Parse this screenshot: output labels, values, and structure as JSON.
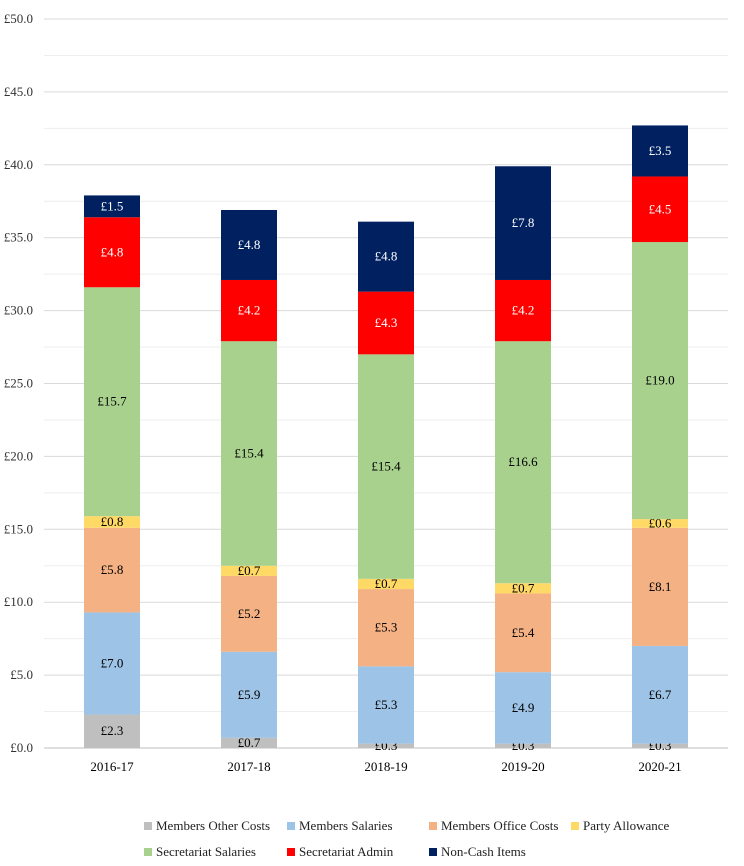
{
  "chart_data": {
    "type": "bar",
    "stacked": true,
    "title": "",
    "xlabel": "",
    "ylabel": "",
    "ylim": [
      0,
      50
    ],
    "ytick_step": 5,
    "ytick_labels": [
      "£0.0",
      "£5.0",
      "£10.0",
      "£15.0",
      "£20.0",
      "£25.0",
      "£30.0",
      "£35.0",
      "£40.0",
      "£45.0",
      "£50.0"
    ],
    "grid": true,
    "legend_position": "bottom",
    "categories": [
      "2016-17",
      "2017-18",
      "2018-19",
      "2019-20",
      "2020-21"
    ],
    "series": [
      {
        "name": "Members Other Costs",
        "color": "#bfbfbf",
        "label_color": "#000000",
        "values": [
          2.3,
          0.7,
          0.3,
          0.3,
          0.3
        ],
        "labels": [
          "£2.3",
          "£0.7",
          "£0.3",
          "£0.3",
          "£0.3"
        ]
      },
      {
        "name": "Members Salaries",
        "color": "#9dc3e6",
        "label_color": "#000000",
        "values": [
          7.0,
          5.9,
          5.3,
          4.9,
          6.7
        ],
        "labels": [
          "£7.0",
          "£5.9",
          "£5.3",
          "£4.9",
          "£6.7"
        ]
      },
      {
        "name": "Members Office Costs",
        "color": "#f4b183",
        "label_color": "#000000",
        "values": [
          5.8,
          5.2,
          5.3,
          5.4,
          8.1
        ],
        "labels": [
          "£5.8",
          "£5.2",
          "£5.3",
          "£5.4",
          "£8.1"
        ]
      },
      {
        "name": "Party Allowance",
        "color": "#ffd966",
        "label_color": "#000000",
        "values": [
          0.8,
          0.7,
          0.7,
          0.7,
          0.6
        ],
        "labels": [
          "£0.8",
          "£0.7",
          "£0.7",
          "£0.7",
          "£0.6"
        ]
      },
      {
        "name": "Secretariat Salaries",
        "color": "#a9d18e",
        "label_color": "#000000",
        "values": [
          15.7,
          15.4,
          15.4,
          16.6,
          19.0
        ],
        "labels": [
          "£15.7",
          "£15.4",
          "£15.4",
          "£16.6",
          "£19.0"
        ]
      },
      {
        "name": "Secretariat Admin",
        "color": "#ff0000",
        "label_color": "#ffffff",
        "values": [
          4.8,
          4.2,
          4.3,
          4.2,
          4.5
        ],
        "labels": [
          "£4.8",
          "£4.2",
          "£4.3",
          "£4.2",
          "£4.5"
        ]
      },
      {
        "name": "Non-Cash Items",
        "color": "#002060",
        "label_color": "#ffffff",
        "values": [
          1.5,
          4.8,
          4.8,
          7.8,
          3.5
        ],
        "labels": [
          "£1.5",
          "£4.8",
          "£4.8",
          "£7.8",
          "£3.5"
        ]
      }
    ]
  }
}
